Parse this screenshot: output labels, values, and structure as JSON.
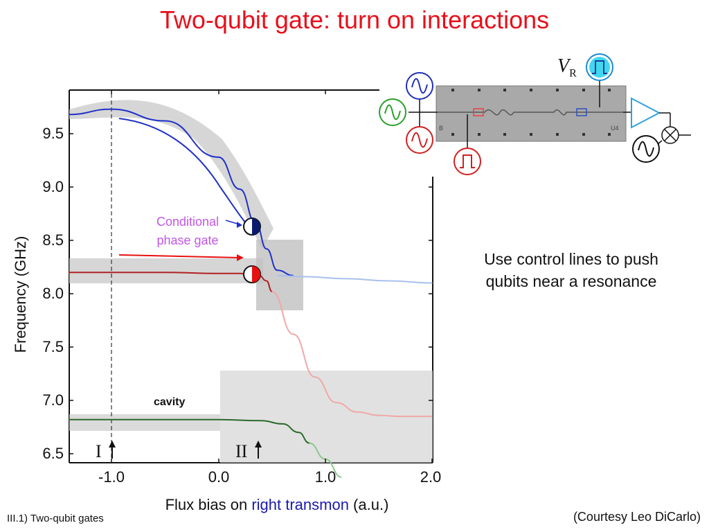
{
  "title": "Two-qubit gate: turn on interactions",
  "plot": {
    "ylabel": "Frequency (GHz)",
    "yticks": [
      "9.5",
      "9.0",
      "8.5",
      "8.0",
      "7.5",
      "7.0",
      "6.5"
    ],
    "xticks": [
      "-1.0",
      "0.0",
      "1.0",
      "2.0"
    ],
    "xlabel_pre": "Flux bias on ",
    "xlabel_hl": "right transmon",
    "xlabel_post": " (a.u.)",
    "cond_label_1": "Conditional",
    "cond_label_2": "phase gate",
    "cavity_label": "cavity",
    "marker_1": "I",
    "marker_2": "II",
    "colors": {
      "blue_branch": "#2030c8",
      "red_branch": "#b02020",
      "green_branch": "#2a6a2a",
      "light_blue": "#a8c0ec",
      "light_red": "#f0a8a8",
      "light_green": "#8ac88a"
    }
  },
  "chart_data": {
    "type": "line",
    "xlabel": "Flux bias on right transmon (a.u.)",
    "ylabel": "Frequency (GHz)",
    "xlim": [
      -1.4,
      2.0
    ],
    "ylim": [
      6.45,
      9.9
    ],
    "series": [
      {
        "x": [
          -1.4,
          -1.0,
          -0.5,
          0.0,
          0.2,
          0.35,
          0.45,
          0.55,
          0.7
        ],
        "y": [
          9.68,
          9.73,
          9.62,
          9.28,
          8.98,
          8.66,
          8.42,
          8.22,
          8.17
        ]
      },
      {
        "x": [
          0.55,
          0.8,
          1.2,
          1.6,
          2.0
        ],
        "y": [
          8.17,
          8.16,
          8.14,
          8.12,
          8.1
        ]
      },
      {
        "x": [
          -1.4,
          -1.0,
          -0.5,
          0.0,
          0.2,
          0.3,
          0.38,
          0.45,
          0.5
        ],
        "y": [
          8.2,
          8.2,
          8.2,
          8.19,
          8.19,
          8.18,
          8.17,
          8.12,
          8.02
        ]
      },
      {
        "x": [
          0.5,
          0.7,
          0.9,
          1.1,
          1.3,
          1.5,
          1.7,
          2.0
        ],
        "y": [
          8.02,
          7.62,
          7.22,
          6.98,
          6.89,
          6.86,
          6.85,
          6.85
        ]
      },
      {
        "x": [
          -1.4,
          -0.5,
          0.0,
          0.4,
          0.6,
          0.75,
          0.85
        ],
        "y": [
          6.82,
          6.82,
          6.82,
          6.81,
          6.78,
          6.7,
          6.6
        ]
      },
      {
        "x": [
          0.85,
          1.0,
          1.15
        ],
        "y": [
          6.6,
          6.45,
          6.28
        ]
      }
    ]
  },
  "circuit": {
    "vr_label": "V",
    "vr_sub": "R",
    "chip_label_left": "B",
    "chip_label_right": "U4"
  },
  "side_text_1": "Use control lines to push",
  "side_text_2": "qubits near a resonance",
  "footer_left": "III.1) Two-qubit gates",
  "footer_right": "(Courtesy Leo DiCarlo)"
}
